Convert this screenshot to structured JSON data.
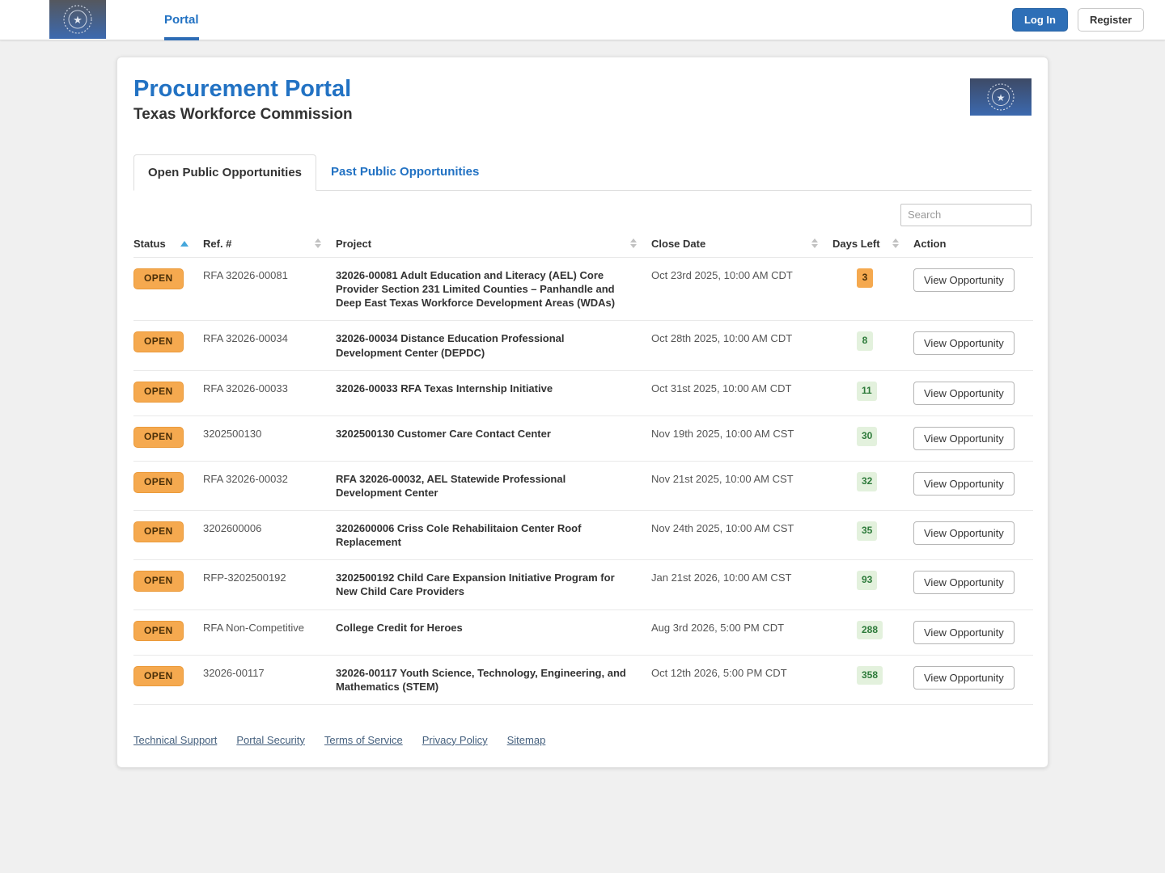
{
  "navbar": {
    "brand_alt": "Texas Workforce Commission seal",
    "portal_link": "Portal",
    "login_label": "Log In",
    "register_label": "Register"
  },
  "header": {
    "title": "Procurement Portal",
    "subtitle": "Texas Workforce Commission"
  },
  "tabs": {
    "open": "Open Public Opportunities",
    "past": "Past Public Opportunities"
  },
  "search": {
    "placeholder": "Search"
  },
  "table": {
    "columns": [
      "Status",
      "Ref. #",
      "Project",
      "Close Date",
      "Days Left",
      "Action"
    ],
    "action_label": "View Opportunity",
    "rows": [
      {
        "status": "OPEN",
        "ref": "RFA 32026-00081",
        "project": "32026-00081 Adult Education and Literacy (AEL) Core Provider Section 231 Limited Counties – Panhandle and Deep East Texas Workforce Development Areas (WDAs)",
        "close_date": "Oct 23rd 2025, 10:00 AM CDT",
        "days_left": "3",
        "days_left_level": "warning"
      },
      {
        "status": "OPEN",
        "ref": "RFA 32026-00034",
        "project": "32026-00034 Distance Education Professional Development Center (DEPDC)",
        "close_date": "Oct 28th 2025, 10:00 AM CDT",
        "days_left": "8",
        "days_left_level": "ok"
      },
      {
        "status": "OPEN",
        "ref": "RFA 32026-00033",
        "project": "32026-00033 RFA Texas Internship Initiative",
        "close_date": "Oct 31st 2025, 10:00 AM CDT",
        "days_left": "11",
        "days_left_level": "ok"
      },
      {
        "status": "OPEN",
        "ref": "3202500130",
        "project": "3202500130 Customer Care Contact Center",
        "close_date": "Nov 19th 2025, 10:00 AM CST",
        "days_left": "30",
        "days_left_level": "ok"
      },
      {
        "status": "OPEN",
        "ref": "RFA 32026-00032",
        "project": "RFA 32026-00032, AEL Statewide Professional Development Center",
        "close_date": "Nov 21st 2025, 10:00 AM CST",
        "days_left": "32",
        "days_left_level": "ok"
      },
      {
        "status": "OPEN",
        "ref": "3202600006",
        "project": "3202600006 Criss Cole Rehabilitaion Center Roof Replacement",
        "close_date": "Nov 24th 2025, 10:00 AM CST",
        "days_left": "35",
        "days_left_level": "ok"
      },
      {
        "status": "OPEN",
        "ref": "RFP-3202500192",
        "project": "3202500192 Child Care Expansion Initiative Program for New Child Care Providers",
        "close_date": "Jan 21st 2026, 10:00 AM CST",
        "days_left": "93",
        "days_left_level": "ok"
      },
      {
        "status": "OPEN",
        "ref": "RFA Non-Competitive",
        "project": "College Credit for Heroes",
        "close_date": "Aug 3rd 2026, 5:00 PM CDT",
        "days_left": "288",
        "days_left_level": "ok"
      },
      {
        "status": "OPEN",
        "ref": "32026-00117",
        "project": "32026-00117 Youth Science, Technology, Engineering, and Mathematics (STEM)",
        "close_date": "Oct 12th 2026, 5:00 PM CDT",
        "days_left": "358",
        "days_left_level": "ok"
      }
    ]
  },
  "footer": {
    "links": [
      "Technical Support",
      "Portal Security",
      "Terms of Service",
      "Privacy Policy",
      "Sitemap"
    ]
  },
  "colors": {
    "accent_blue": "#2272c3",
    "login_button": "#2e6fb7",
    "open_badge_bg": "#f5a94f",
    "days_ok_bg": "#e3f1dd",
    "days_ok_text": "#2d7a3a",
    "days_warn_bg": "#f5a94f"
  }
}
